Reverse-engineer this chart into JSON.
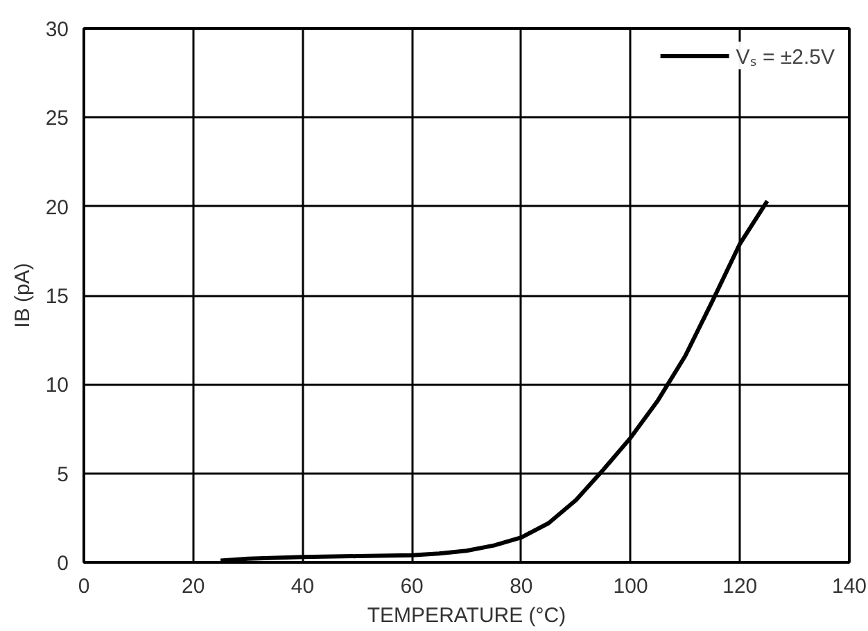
{
  "chart_data": {
    "type": "line",
    "xlabel": "TEMPERATURE (°C)",
    "ylabel": "IB (pA)",
    "x": [
      25,
      30,
      40,
      50,
      60,
      65,
      70,
      75,
      80,
      85,
      90,
      95,
      100,
      105,
      110,
      115,
      120,
      125
    ],
    "series": [
      {
        "name": "Vₛ = ±2.5V",
        "color": "#000000",
        "values": [
          0.1,
          0.2,
          0.3,
          0.35,
          0.4,
          0.5,
          0.65,
          0.95,
          1.4,
          2.2,
          3.5,
          5.2,
          7.0,
          9.1,
          11.6,
          14.7,
          17.9,
          20.3
        ]
      }
    ],
    "xlim": [
      0,
      140
    ],
    "xticks": [
      0,
      20,
      40,
      60,
      80,
      100,
      120,
      140
    ],
    "ylim": [
      0,
      30
    ],
    "yticks": [
      0,
      5,
      10,
      15,
      20,
      25,
      30
    ],
    "grid": true,
    "legend": "top right",
    "line_style": "solid",
    "marker": "none"
  }
}
